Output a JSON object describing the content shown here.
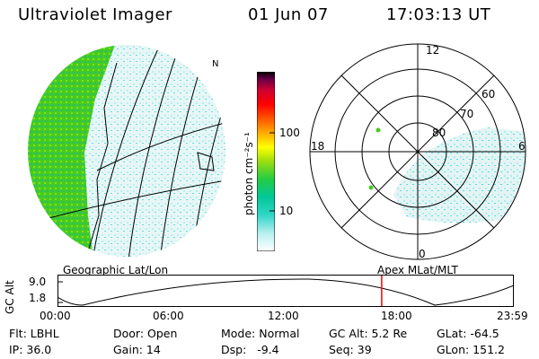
{
  "header": {
    "instrument": "Ultraviolet Imager",
    "date": "01 Jun 07",
    "time": "17:03:13 UT"
  },
  "colorbar": {
    "unit_label": "photon cm⁻²s⁻¹",
    "ticks": [
      "100",
      "10"
    ],
    "colors": [
      "#ffffff",
      "#b8f0f0",
      "#33d6c8",
      "#00c89a",
      "#22cc44",
      "#99dd11",
      "#ffff00",
      "#ffaa00",
      "#ff5500",
      "#ff0000",
      "#cc0033",
      "#660044",
      "#000000"
    ]
  },
  "geo_panel": {
    "label": "Geographic Lat/Lon"
  },
  "polar_panel": {
    "label": "Apex MLat/MLT",
    "hour_labels": {
      "top": "12",
      "left": "18",
      "right": "6",
      "bottom": "0"
    },
    "lat_labels": [
      "60",
      "70",
      "80"
    ]
  },
  "orbit": {
    "ylabel": "GC Alt",
    "yticks": [
      "9.0",
      "1.8"
    ],
    "xticks": [
      "00:00",
      "06:00",
      "12:00",
      "18:00",
      "23:59"
    ],
    "current_time_fraction": 0.7105
  },
  "info": {
    "flt": "Flt: LBHL",
    "ip": "IP: 36.0",
    "door": "Door: Open",
    "gain": "Gain: 14",
    "mode": "Mode: Normal",
    "dsp": "Dsp:   -9.4",
    "gcalt": "GC Alt: 5.2 Re",
    "seq": "Seq: 39",
    "glat": "GLat: -64.5",
    "glon": "GLon: 151.2"
  }
}
